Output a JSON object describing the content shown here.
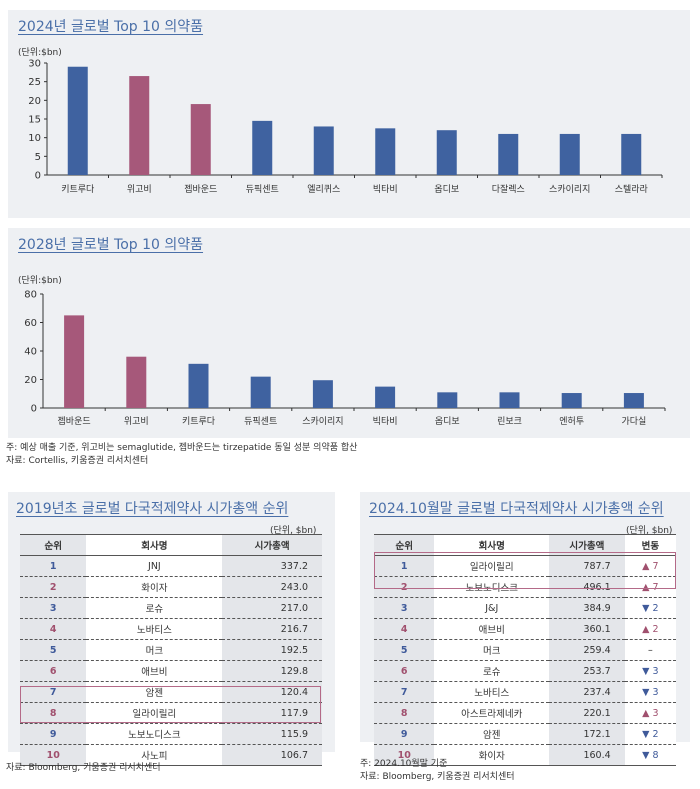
{
  "chart_data": [
    {
      "type": "bar",
      "title": "2024년 글로벌 Top 10 의약품",
      "ylabel": "(단위:$bn)",
      "ylim": [
        0,
        30
      ],
      "yticks": [
        0,
        5,
        10,
        15,
        20,
        25,
        30
      ],
      "categories": [
        "키트루다",
        "위고비",
        "젭바운드",
        "듀픽센트",
        "엘리퀴스",
        "빅타비",
        "옵디보",
        "다잘렉스",
        "스카이리지",
        "스텔라라"
      ],
      "values": [
        29,
        26.5,
        19,
        14.5,
        13,
        12.5,
        12,
        11,
        11,
        11
      ],
      "highlight": [
        false,
        true,
        true,
        false,
        false,
        false,
        false,
        false,
        false,
        false
      ]
    },
    {
      "type": "bar",
      "title": "2028년 글로벌 Top 10 의약품",
      "ylabel": "(단위:$bn)",
      "ylim": [
        0,
        80
      ],
      "yticks": [
        0,
        20,
        40,
        60,
        80
      ],
      "categories": [
        "젭바운드",
        "위고비",
        "키트루다",
        "듀픽센트",
        "스카이리지",
        "빅타비",
        "옵디보",
        "린보크",
        "엔허투",
        "가다실"
      ],
      "values": [
        65,
        36,
        31,
        22,
        19.5,
        15,
        11,
        11,
        10.5,
        10.5
      ],
      "highlight": [
        true,
        true,
        false,
        false,
        false,
        false,
        false,
        false,
        false,
        false
      ]
    }
  ],
  "colors": {
    "bar": "#3f62a0",
    "highlight": "#a6587a",
    "title": "#4a6fa8"
  },
  "chart_note": "주: 예상 매출 기준, 위고비는 semaglutide, 젭바운드는 tirzepatide 동일 성분 의약품 합산",
  "chart_source": "자료: Cortellis, 키움증권 리서치센터",
  "table2019": {
    "title": "2019년초 글로벌 다국적제약사 시가총액 순위",
    "unit": "(단위, $bn)",
    "headers": [
      "순위",
      "회사명",
      "시가총액"
    ],
    "rows": [
      [
        "1",
        "JNJ",
        "337.2"
      ],
      [
        "2",
        "화이자",
        "243.0"
      ],
      [
        "3",
        "로슈",
        "217.0"
      ],
      [
        "4",
        "노바티스",
        "216.7"
      ],
      [
        "5",
        "머크",
        "192.5"
      ],
      [
        "6",
        "애브비",
        "129.8"
      ],
      [
        "7",
        "암젠",
        "120.4"
      ],
      [
        "8",
        "일라이릴리",
        "117.9"
      ],
      [
        "9",
        "노보노디스크",
        "115.9"
      ],
      [
        "10",
        "사노피",
        "106.7"
      ]
    ],
    "source": "자료: Bloomberg, 키움증권 리서치센터"
  },
  "table2024": {
    "title": "2024.10월말 글로벌 다국적제약사 시가총액 순위",
    "unit": "(단위, $bn)",
    "headers": [
      "순위",
      "회사명",
      "시가총액",
      "변동"
    ],
    "rows": [
      [
        "1",
        "일라이릴리",
        "787.7",
        "▲ 7"
      ],
      [
        "2",
        "노보노디스크",
        "496.1",
        "▲ 7"
      ],
      [
        "3",
        "J&J",
        "384.9",
        "▼ 2"
      ],
      [
        "4",
        "애브비",
        "360.1",
        "▲ 2"
      ],
      [
        "5",
        "머크",
        "259.4",
        "–"
      ],
      [
        "6",
        "로슈",
        "253.7",
        "▼ 3"
      ],
      [
        "7",
        "노바티스",
        "237.4",
        "▼ 3"
      ],
      [
        "8",
        "아스트라제네카",
        "220.1",
        "▲ 3"
      ],
      [
        "9",
        "암젠",
        "172.1",
        "▼ 2"
      ],
      [
        "10",
        "화이자",
        "160.4",
        "▼ 8"
      ]
    ],
    "note": "주: 2024.10월말 기준",
    "source": "자료: Bloomberg, 키움증권 리서치센터"
  }
}
